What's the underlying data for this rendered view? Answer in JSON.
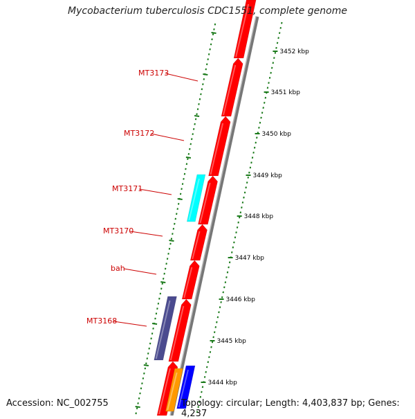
{
  "title": "Mycobacterium tuberculosis CDC1551, complete genome",
  "accession": "Accession: NC_002755",
  "topology": "Topology: circular; Length: 4,403,837 bp; Genes: 4,237",
  "colors": {
    "forward_gene": "#ff0000",
    "reverse_gene": "#ff0000",
    "cyan_gene": "#00ffff",
    "purple_gene": "#4b4b8f",
    "blue_gene": "#0000ff",
    "orange_gene": "#ff9900",
    "tick": "#1a7a1a",
    "label": "#cc0000",
    "backbone": "#888888"
  },
  "gene_labels": [
    {
      "name": "MT3173"
    },
    {
      "name": "MT3172"
    },
    {
      "name": "MT3171"
    },
    {
      "name": "MT3170"
    },
    {
      "name": "bah"
    },
    {
      "name": "MT3168"
    }
  ],
  "kbp_labels": [
    {
      "label": "3452 kbp"
    },
    {
      "label": "3451 kbp"
    },
    {
      "label": "3450 kbp"
    },
    {
      "label": "3449 kbp"
    },
    {
      "label": "3448 kbp"
    },
    {
      "label": "3447 kbp"
    },
    {
      "label": "3446 kbp"
    },
    {
      "label": "3445 kbp"
    },
    {
      "label": "3444 kbp"
    }
  ]
}
